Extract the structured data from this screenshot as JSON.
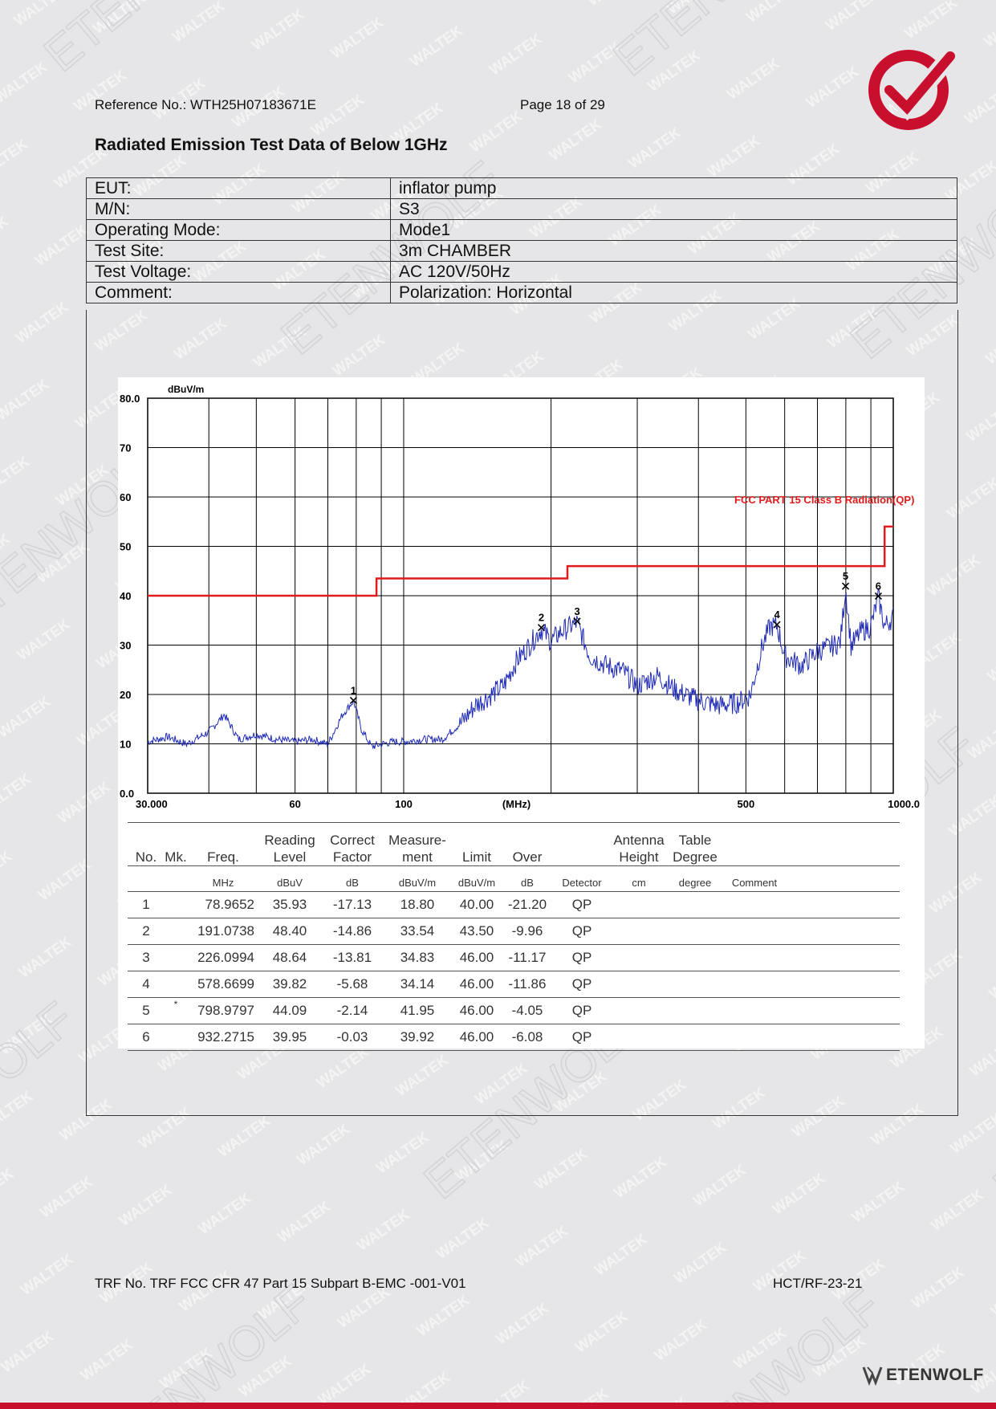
{
  "header": {
    "reference": "Reference No.: WTH25H07183671E",
    "page": "Page 18 of 29"
  },
  "title": "Radiated Emission Test Data of Below 1GHz",
  "info_rows": [
    {
      "label": "EUT:",
      "value": "inflator pump"
    },
    {
      "label": "M/N:",
      "value": "S3"
    },
    {
      "label": "Operating Mode:",
      "value": "Mode1"
    },
    {
      "label": "Test Site:",
      "value": "3m CHAMBER"
    },
    {
      "label": "Test Voltage:",
      "value": "AC 120V/50Hz"
    },
    {
      "label": "Comment:",
      "value": "Polarization: Horizontal"
    }
  ],
  "chart_data": {
    "type": "line",
    "ylabel": "dBuV/m",
    "xlabel": "(MHz)",
    "x_scale": "log",
    "xlim": [
      30,
      1000
    ],
    "ylim": [
      0,
      80
    ],
    "y_ticks": [
      "80.0",
      "70",
      "60",
      "50",
      "40",
      "30",
      "20",
      "10",
      "0.0"
    ],
    "x_ticks": [
      "30.000",
      "60",
      "100",
      "500",
      "1000.0"
    ],
    "limit_label": "FCC PART 15 Class B Radiation(QP)",
    "limit_line": [
      [
        30,
        40
      ],
      [
        88,
        40
      ],
      [
        88,
        43.5
      ],
      [
        216,
        43.5
      ],
      [
        216,
        46
      ],
      [
        960,
        46
      ],
      [
        960,
        54
      ],
      [
        1000,
        54
      ]
    ],
    "markers": [
      {
        "label": "1",
        "x": 78.9652,
        "y": 18.8
      },
      {
        "label": "2",
        "x": 191.0738,
        "y": 33.54
      },
      {
        "label": "3",
        "x": 226.0994,
        "y": 34.83
      },
      {
        "label": "4",
        "x": 578.6699,
        "y": 34.14
      },
      {
        "label": "5",
        "x": 798.9797,
        "y": 41.95
      },
      {
        "label": "6",
        "x": 932.2715,
        "y": 39.92
      }
    ],
    "trace_envelope": [
      [
        30,
        10.5
      ],
      [
        33,
        11.5
      ],
      [
        36,
        10
      ],
      [
        40,
        12.5
      ],
      [
        43,
        16
      ],
      [
        46,
        11
      ],
      [
        50,
        12
      ],
      [
        55,
        11
      ],
      [
        60,
        10.5
      ],
      [
        65,
        11
      ],
      [
        70,
        10
      ],
      [
        75,
        16
      ],
      [
        79,
        18.8
      ],
      [
        82,
        13
      ],
      [
        86,
        9.5
      ],
      [
        90,
        10
      ],
      [
        95,
        10.5
      ],
      [
        100,
        10.5
      ],
      [
        110,
        11
      ],
      [
        120,
        11
      ],
      [
        130,
        14
      ],
      [
        140,
        18
      ],
      [
        150,
        20
      ],
      [
        160,
        22
      ],
      [
        170,
        27
      ],
      [
        180,
        30
      ],
      [
        191,
        33.5
      ],
      [
        200,
        31
      ],
      [
        210,
        33
      ],
      [
        226,
        34.8
      ],
      [
        240,
        28
      ],
      [
        260,
        26
      ],
      [
        280,
        25
      ],
      [
        300,
        22
      ],
      [
        330,
        24
      ],
      [
        360,
        21
      ],
      [
        400,
        19
      ],
      [
        440,
        18
      ],
      [
        480,
        18.5
      ],
      [
        510,
        20
      ],
      [
        540,
        30
      ],
      [
        560,
        34
      ],
      [
        579,
        34.1
      ],
      [
        600,
        28
      ],
      [
        650,
        26
      ],
      [
        700,
        29
      ],
      [
        750,
        30
      ],
      [
        780,
        31
      ],
      [
        799,
        41.9
      ],
      [
        820,
        30
      ],
      [
        860,
        33
      ],
      [
        900,
        34
      ],
      [
        932,
        39.9
      ],
      [
        960,
        34
      ],
      [
        1000,
        36
      ]
    ],
    "series": [
      {
        "name": "Trace",
        "color": "#1f2bb5"
      },
      {
        "name": "Limit",
        "color": "#e01b1b"
      }
    ]
  },
  "results": {
    "headers": [
      "No.",
      "Mk.",
      "Freq.",
      "Reading Level",
      "Correct Factor",
      "Measure-ment",
      "Limit",
      "Over",
      "",
      "Antenna Height",
      "Table Degree",
      ""
    ],
    "header_lines": {
      "reading": [
        "Reading",
        "Level"
      ],
      "correct": [
        "Correct",
        "Factor"
      ],
      "measure": [
        "Measure-",
        "ment"
      ],
      "antenna": [
        "Antenna",
        "Height"
      ],
      "table": [
        "Table",
        "Degree"
      ]
    },
    "units": [
      "",
      "",
      "MHz",
      "dBuV",
      "dB",
      "dBuV/m",
      "dBuV/m",
      "dB",
      "Detector",
      "cm",
      "degree",
      "Comment"
    ],
    "rows": [
      {
        "no": "1",
        "mk": "",
        "freq": "78.9652",
        "reading": "35.93",
        "correct": "-17.13",
        "measure": "18.80",
        "limit": "40.00",
        "over": "-21.20",
        "detector": "QP"
      },
      {
        "no": "2",
        "mk": "",
        "freq": "191.0738",
        "reading": "48.40",
        "correct": "-14.86",
        "measure": "33.54",
        "limit": "43.50",
        "over": "-9.96",
        "detector": "QP"
      },
      {
        "no": "3",
        "mk": "",
        "freq": "226.0994",
        "reading": "48.64",
        "correct": "-13.81",
        "measure": "34.83",
        "limit": "46.00",
        "over": "-11.17",
        "detector": "QP"
      },
      {
        "no": "4",
        "mk": "",
        "freq": "578.6699",
        "reading": "39.82",
        "correct": "-5.68",
        "measure": "34.14",
        "limit": "46.00",
        "over": "-11.86",
        "detector": "QP"
      },
      {
        "no": "5",
        "mk": "*",
        "freq": "798.9797",
        "reading": "44.09",
        "correct": "-2.14",
        "measure": "41.95",
        "limit": "46.00",
        "over": "-4.05",
        "detector": "QP"
      },
      {
        "no": "6",
        "mk": "",
        "freq": "932.2715",
        "reading": "39.95",
        "correct": "-0.03",
        "measure": "39.92",
        "limit": "46.00",
        "over": "-6.08",
        "detector": "QP"
      }
    ]
  },
  "footer": {
    "trf": "TRF No. TRF FCC CFR 47 Part 15 Subpart B-EMC -001-V01",
    "code": "HCT/RF-23-21",
    "brand": "ETENWOLF"
  },
  "watermark": {
    "text_a": "WALTEK",
    "text_b": "ETENWOLF"
  },
  "colors": {
    "brand_red": "#c8102e",
    "trace_blue": "#1f2bb5",
    "limit_red": "#e01b1b"
  }
}
